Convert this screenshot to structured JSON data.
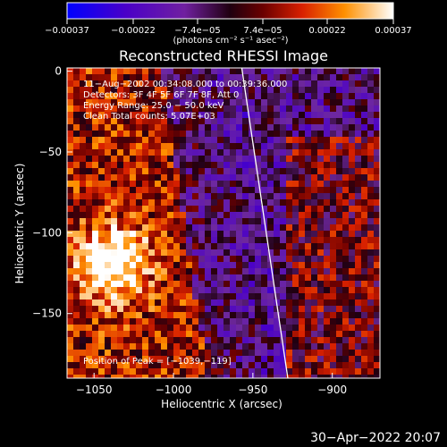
{
  "chart_data": {
    "type": "heatmap",
    "title": "Reconstructed RHESSI Image",
    "xlabel": "Heliocentric X (arcsec)",
    "ylabel": "Heliocentric Y (arcsec)",
    "xlim": [
      -1067,
      -870
    ],
    "ylim": [
      -190,
      2
    ],
    "x_ticks": [
      -1050,
      -1000,
      -950,
      -900
    ],
    "x_tick_labels": [
      "−1050",
      "−1000",
      "−950",
      "−900"
    ],
    "y_ticks": [
      0,
      -50,
      -100,
      -150
    ],
    "y_tick_labels": [
      "0",
      "−50",
      "−100",
      "−150"
    ],
    "colorbar": {
      "range": [
        -0.00037,
        0.00037
      ],
      "ticks": [
        -0.00037,
        -0.00022,
        -7.4e-05,
        7.4e-05,
        0.00022,
        0.00037
      ],
      "tick_labels": [
        "−0.00037",
        "−0.00022",
        "−7.4e−05",
        "7.4e−05",
        "0.00022",
        "0.00037"
      ],
      "unit_label": "(photons cm⁻² s⁻¹ asec⁻²)"
    },
    "annotations": [
      "11−Aug−2002 00:34:08.000 to 00:39:36.000",
      "Detectors: 3F 4F 5F 6F 7F 8F, Att 0",
      "Energy Range: 25.0 − 50.0 keV",
      "Clean    Total counts: 5.07E+03"
    ],
    "peak_label": "Position of Peak = [−1039,−119]",
    "peak": [
      -1039,
      -119
    ],
    "limb_line": [
      [
        -957,
        2
      ],
      [
        -928,
        -190
      ]
    ],
    "grid": false
  },
  "timestamp": "30−Apr−2022 20:07"
}
